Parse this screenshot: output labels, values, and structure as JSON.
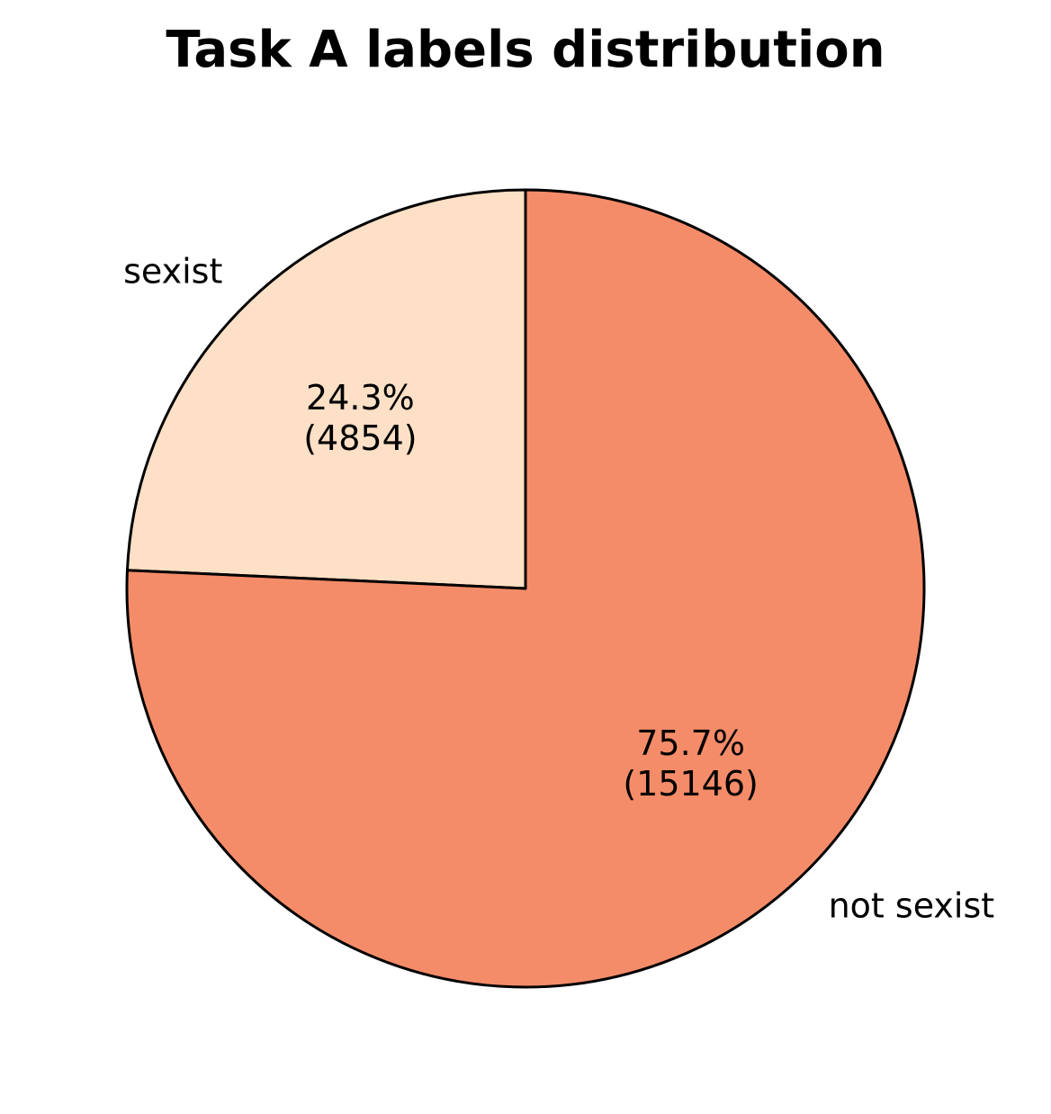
{
  "chart_data": {
    "type": "pie",
    "title": "Task A labels distribution",
    "slices": [
      {
        "label": "sexist",
        "value": 4854,
        "percent_label": "24.3%",
        "count_label": "(4854)",
        "color": "#fee0c6"
      },
      {
        "label": "not sexist",
        "value": 15146,
        "percent_label": "75.7%",
        "count_label": "(15146)",
        "color": "#f58c69"
      }
    ],
    "start_angle": "top (12 o'clock)",
    "direction": "counterclockwise",
    "edge_color": "#000000"
  }
}
